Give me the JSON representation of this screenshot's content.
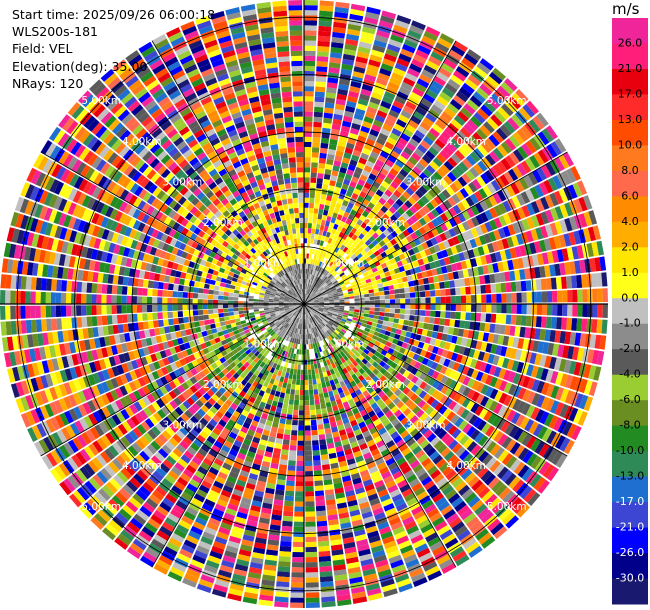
{
  "header": {
    "start_time": "Start time: 2025/09/26 06:00:18",
    "site": "WLS200s-181",
    "field": "Field: VEL",
    "elevation": "Elevation(deg): 35.00",
    "nrays": "NRays: 120"
  },
  "colorbar": {
    "unit": "m/s",
    "ticks": [
      "26.0",
      "21.0",
      "17.0",
      "13.0",
      "10.0",
      "8.0",
      "6.0",
      "4.0",
      "2.0",
      "1.0",
      "0.0",
      "-1.0",
      "-2.0",
      "-4.0",
      "-6.0",
      "-8.0",
      "-10.0",
      "-13.0",
      "-17.0",
      "-21.0",
      "-26.0",
      "-30.0"
    ],
    "colors": [
      "#f0259a",
      "#ff1f7a",
      "#e8000f",
      "#ff2a2a",
      "#ff4c00",
      "#ff7a1f",
      "#ff6a4c",
      "#ff8c00",
      "#ffae00",
      "#ffe600",
      "#ffff19",
      "#c0c0c0",
      "#8c8c8c",
      "#5a5a5a",
      "#9acd32",
      "#6b8e23",
      "#228b22",
      "#2e8b57",
      "#1e6fd0",
      "#3c46d2",
      "#0000ff",
      "#00008b",
      "#191970"
    ]
  },
  "chart_data": {
    "type": "heatmap",
    "title": "",
    "field": "VEL",
    "units": "m/s",
    "elevation_deg": 35.0,
    "n_rays": 120,
    "range_rings_km": [
      1.0,
      2.0,
      3.0,
      4.0,
      5.0
    ],
    "range_labels": [
      "1.00km",
      "2.00km",
      "3.00km",
      "4.00km",
      "5.00km"
    ],
    "pattern": "Near-range: grey (≈0 m/s) core; yellow (≈2–4 m/s) to the north sector within ~2 km; green (≈-4 to -8 m/s) to the south sector within ~2 km; beyond ~2.5 km mostly noise across the full color scale."
  }
}
